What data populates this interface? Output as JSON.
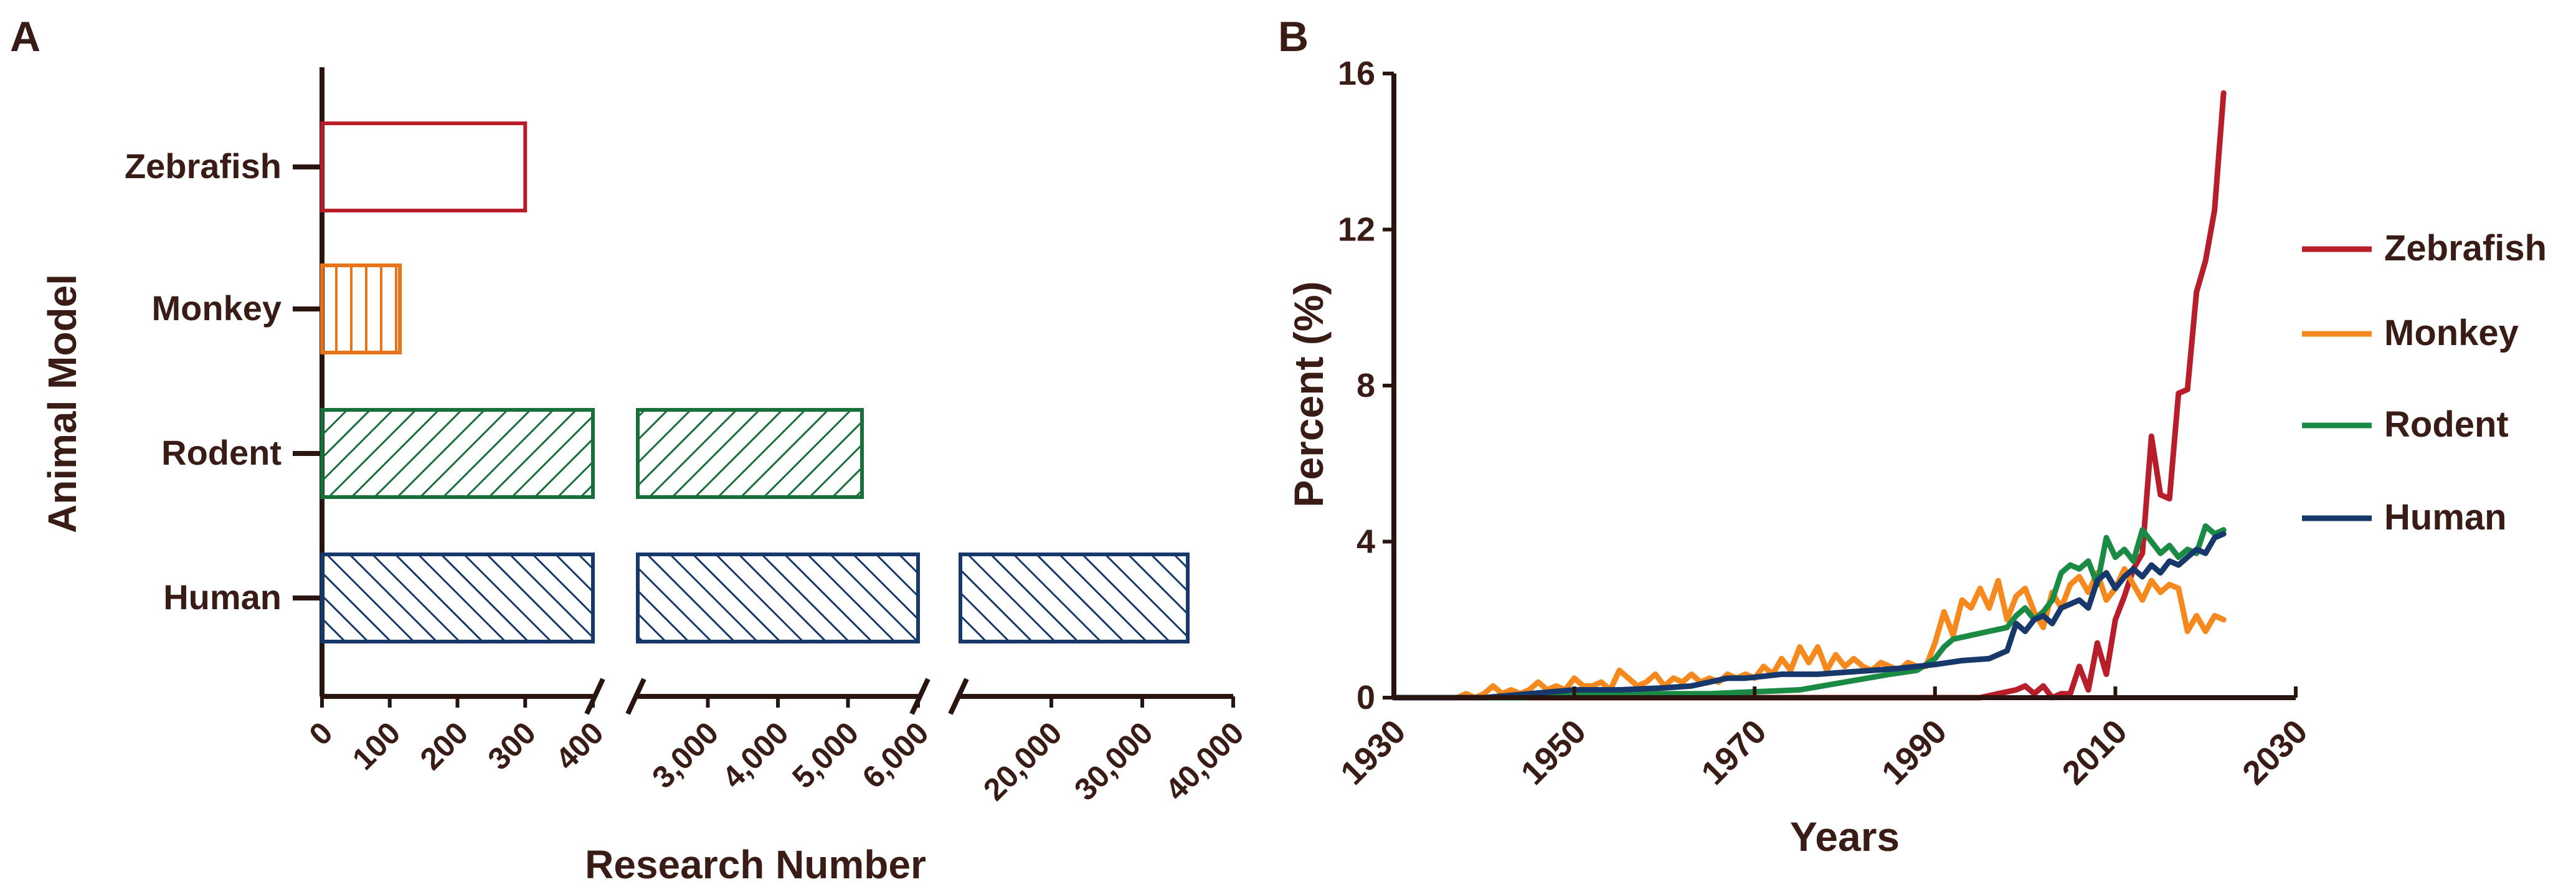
{
  "panel_labels": {
    "a": "A",
    "b": "B"
  },
  "chart_data": [
    {
      "type": "bar",
      "orientation": "horizontal",
      "broken_axis": true,
      "xlabel": "Research Number",
      "ylabel": "Animal Model",
      "categories": [
        "Zebrafish",
        "Monkey",
        "Rodent",
        "Human"
      ],
      "values": [
        300,
        115,
        5200,
        35000
      ],
      "colors": [
        "#b81e2a",
        "#e8741a",
        "#17703a",
        "#17386b"
      ],
      "patterns": [
        "none",
        "vertical",
        "diagonal-right",
        "diagonal-left"
      ],
      "axis_segments": [
        {
          "range": [
            0,
            400
          ],
          "ticks": [
            0,
            100,
            200,
            300,
            400
          ],
          "tick_labels": [
            "0",
            "100",
            "200",
            "300",
            "400"
          ]
        },
        {
          "range": [
            2000,
            6000
          ],
          "ticks": [
            3000,
            4000,
            5000,
            6000
          ],
          "tick_labels": [
            "3,000",
            "4,000",
            "5,000",
            "6,000"
          ]
        },
        {
          "range": [
            10000,
            40000
          ],
          "ticks": [
            20000,
            30000,
            40000
          ],
          "tick_labels": [
            "20,000",
            "30,000",
            "40,000"
          ]
        }
      ]
    },
    {
      "type": "line",
      "xlabel": "Years",
      "ylabel": "Percent (%)",
      "xlim": [
        1930,
        2030
      ],
      "ylim": [
        0,
        16
      ],
      "xticks": [
        1930,
        1950,
        1970,
        1990,
        2010,
        2030
      ],
      "xtick_labels": [
        "1930",
        "1950",
        "1970",
        "1990",
        "2010",
        "2030"
      ],
      "yticks": [
        0,
        4,
        8,
        12,
        16
      ],
      "ytick_labels": [
        "0",
        "4",
        "8",
        "12",
        "16"
      ],
      "legend_position": "right",
      "series": [
        {
          "name": "Zebrafish",
          "color": "#b81e2a",
          "points": [
            [
              1930,
              0
            ],
            [
              1995,
              0
            ],
            [
              1997,
              0.1
            ],
            [
              1999,
              0.2
            ],
            [
              2000,
              0.3
            ],
            [
              2001,
              0.1
            ],
            [
              2002,
              0.3
            ],
            [
              2003,
              0
            ],
            [
              2004,
              0.1
            ],
            [
              2005,
              0.1
            ],
            [
              2006,
              0.8
            ],
            [
              2007,
              0.2
            ],
            [
              2008,
              1.4
            ],
            [
              2009,
              0.6
            ],
            [
              2010,
              2.0
            ],
            [
              2011,
              2.6
            ],
            [
              2012,
              3.3
            ],
            [
              2013,
              3.7
            ],
            [
              2014,
              6.7
            ],
            [
              2015,
              5.2
            ],
            [
              2016,
              5.1
            ],
            [
              2017,
              7.8
            ],
            [
              2018,
              7.9
            ],
            [
              2019,
              10.4
            ],
            [
              2020,
              11.2
            ],
            [
              2021,
              12.5
            ],
            [
              2022,
              15.5
            ]
          ]
        },
        {
          "name": "Monkey",
          "color": "#f5891d",
          "points": [
            [
              1930,
              0
            ],
            [
              1937,
              0
            ],
            [
              1938,
              0.1
            ],
            [
              1939,
              0
            ],
            [
              1940,
              0.1
            ],
            [
              1941,
              0.3
            ],
            [
              1942,
              0.1
            ],
            [
              1943,
              0.2
            ],
            [
              1944,
              0.1
            ],
            [
              1945,
              0.2
            ],
            [
              1946,
              0.4
            ],
            [
              1947,
              0.2
            ],
            [
              1948,
              0.3
            ],
            [
              1949,
              0.2
            ],
            [
              1950,
              0.5
            ],
            [
              1951,
              0.3
            ],
            [
              1952,
              0.3
            ],
            [
              1953,
              0.4
            ],
            [
              1954,
              0.2
            ],
            [
              1955,
              0.7
            ],
            [
              1956,
              0.5
            ],
            [
              1957,
              0.3
            ],
            [
              1958,
              0.4
            ],
            [
              1959,
              0.6
            ],
            [
              1960,
              0.3
            ],
            [
              1961,
              0.5
            ],
            [
              1962,
              0.4
            ],
            [
              1963,
              0.6
            ],
            [
              1964,
              0.4
            ],
            [
              1965,
              0.5
            ],
            [
              1966,
              0.4
            ],
            [
              1967,
              0.6
            ],
            [
              1968,
              0.5
            ],
            [
              1969,
              0.6
            ],
            [
              1970,
              0.5
            ],
            [
              1971,
              0.8
            ],
            [
              1972,
              0.6
            ],
            [
              1973,
              1.0
            ],
            [
              1974,
              0.7
            ],
            [
              1975,
              1.3
            ],
            [
              1976,
              0.9
            ],
            [
              1977,
              1.3
            ],
            [
              1978,
              0.7
            ],
            [
              1979,
              1.1
            ],
            [
              1980,
              0.8
            ],
            [
              1981,
              1.0
            ],
            [
              1982,
              0.8
            ],
            [
              1983,
              0.7
            ],
            [
              1984,
              0.9
            ],
            [
              1985,
              0.8
            ],
            [
              1986,
              0.7
            ],
            [
              1987,
              0.9
            ],
            [
              1988,
              0.8
            ],
            [
              1989,
              0.8
            ],
            [
              1990,
              1.4
            ],
            [
              1991,
              2.2
            ],
            [
              1992,
              1.6
            ],
            [
              1993,
              2.5
            ],
            [
              1994,
              2.3
            ],
            [
              1995,
              2.8
            ],
            [
              1996,
              2.3
            ],
            [
              1997,
              3.0
            ],
            [
              1998,
              2.0
            ],
            [
              1999,
              2.6
            ],
            [
              2000,
              2.8
            ],
            [
              2001,
              2.2
            ],
            [
              2002,
              1.8
            ],
            [
              2003,
              2.7
            ],
            [
              2004,
              2.3
            ],
            [
              2005,
              2.9
            ],
            [
              2006,
              3.1
            ],
            [
              2007,
              2.7
            ],
            [
              2008,
              3.2
            ],
            [
              2009,
              2.5
            ],
            [
              2010,
              2.8
            ],
            [
              2011,
              3.3
            ],
            [
              2012,
              2.9
            ],
            [
              2013,
              2.5
            ],
            [
              2014,
              3.0
            ],
            [
              2015,
              2.7
            ],
            [
              2016,
              2.9
            ],
            [
              2017,
              2.8
            ],
            [
              2018,
              1.7
            ],
            [
              2019,
              2.1
            ],
            [
              2020,
              1.7
            ],
            [
              2021,
              2.1
            ],
            [
              2022,
              2.0
            ]
          ]
        },
        {
          "name": "Rodent",
          "color": "#1b8a45",
          "points": [
            [
              1930,
              0
            ],
            [
              1945,
              0
            ],
            [
              1950,
              0.05
            ],
            [
              1955,
              0.1
            ],
            [
              1960,
              0.1
            ],
            [
              1965,
              0.1
            ],
            [
              1970,
              0.15
            ],
            [
              1975,
              0.2
            ],
            [
              1980,
              0.4
            ],
            [
              1985,
              0.6
            ],
            [
              1988,
              0.7
            ],
            [
              1990,
              1.0
            ],
            [
              1991,
              1.3
            ],
            [
              1992,
              1.5
            ],
            [
              1994,
              1.6
            ],
            [
              1996,
              1.7
            ],
            [
              1998,
              1.8
            ],
            [
              1999,
              2.1
            ],
            [
              2000,
              2.3
            ],
            [
              2001,
              2.0
            ],
            [
              2002,
              2.2
            ],
            [
              2003,
              2.5
            ],
            [
              2004,
              3.2
            ],
            [
              2005,
              3.4
            ],
            [
              2006,
              3.3
            ],
            [
              2007,
              3.5
            ],
            [
              2008,
              2.9
            ],
            [
              2009,
              4.1
            ],
            [
              2010,
              3.6
            ],
            [
              2011,
              3.8
            ],
            [
              2012,
              3.5
            ],
            [
              2013,
              4.3
            ],
            [
              2014,
              4.0
            ],
            [
              2015,
              3.7
            ],
            [
              2016,
              3.9
            ],
            [
              2017,
              3.6
            ],
            [
              2018,
              3.8
            ],
            [
              2019,
              3.7
            ],
            [
              2020,
              4.4
            ],
            [
              2021,
              4.2
            ],
            [
              2022,
              4.3
            ]
          ]
        },
        {
          "name": "Human",
          "color": "#17386b",
          "points": [
            [
              1930,
              0
            ],
            [
              1940,
              0
            ],
            [
              1945,
              0.1
            ],
            [
              1950,
              0.2
            ],
            [
              1955,
              0.2
            ],
            [
              1960,
              0.25
            ],
            [
              1963,
              0.3
            ],
            [
              1965,
              0.4
            ],
            [
              1967,
              0.5
            ],
            [
              1969,
              0.5
            ],
            [
              1971,
              0.55
            ],
            [
              1973,
              0.6
            ],
            [
              1975,
              0.6
            ],
            [
              1977,
              0.6
            ],
            [
              1980,
              0.65
            ],
            [
              1983,
              0.7
            ],
            [
              1986,
              0.75
            ],
            [
              1988,
              0.8
            ],
            [
              1990,
              0.85
            ],
            [
              1993,
              0.95
            ],
            [
              1996,
              1.0
            ],
            [
              1998,
              1.2
            ],
            [
              1999,
              1.9
            ],
            [
              2000,
              1.7
            ],
            [
              2001,
              2.0
            ],
            [
              2002,
              2.1
            ],
            [
              2003,
              1.9
            ],
            [
              2004,
              2.3
            ],
            [
              2005,
              2.4
            ],
            [
              2006,
              2.5
            ],
            [
              2007,
              2.3
            ],
            [
              2008,
              3.0
            ],
            [
              2009,
              3.2
            ],
            [
              2010,
              2.8
            ],
            [
              2011,
              3.1
            ],
            [
              2012,
              3.3
            ],
            [
              2013,
              3.1
            ],
            [
              2014,
              3.4
            ],
            [
              2015,
              3.2
            ],
            [
              2016,
              3.5
            ],
            [
              2017,
              3.4
            ],
            [
              2018,
              3.6
            ],
            [
              2019,
              3.8
            ],
            [
              2020,
              3.7
            ],
            [
              2021,
              4.1
            ],
            [
              2022,
              4.2
            ]
          ]
        }
      ]
    }
  ]
}
